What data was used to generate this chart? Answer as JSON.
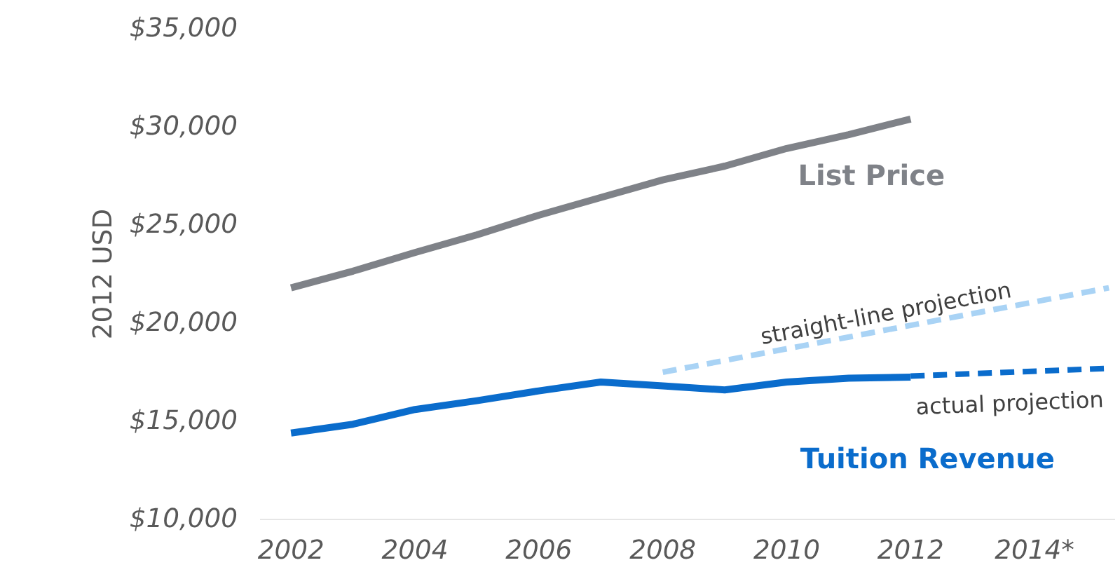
{
  "chart_data": {
    "type": "line",
    "ylabel": "2012 USD",
    "xlim": [
      2001.5,
      2015.3
    ],
    "ylim": [
      10000,
      35000
    ],
    "xticks": [
      2002,
      2004,
      2006,
      2008,
      2010,
      2012,
      {
        "value": 2014,
        "label": "2014*"
      }
    ],
    "yticks": [
      {
        "value": 10000,
        "label": "$10,000"
      },
      {
        "value": 15000,
        "label": "$15,000"
      },
      {
        "value": 20000,
        "label": "$20,000"
      },
      {
        "value": 25000,
        "label": "$25,000"
      },
      {
        "value": 30000,
        "label": "$30,000"
      },
      {
        "value": 35000,
        "label": "$35,000"
      }
    ],
    "grid": false,
    "marker": "none",
    "series": [
      {
        "name": "List Price",
        "color": "#7f8288",
        "line_style": "solid",
        "x": [
          2002,
          2003,
          2004,
          2005,
          2006,
          2007,
          2008,
          2009,
          2010,
          2011,
          2012
        ],
        "values": [
          21800,
          22650,
          23600,
          24500,
          25500,
          26400,
          27300,
          28000,
          28900,
          29600,
          30400
        ]
      },
      {
        "name": "Tuition Revenue",
        "color": "#0a6ccc",
        "line_style": "solid",
        "x": [
          2002,
          2003,
          2004,
          2005,
          2006,
          2007,
          2008,
          2009,
          2010,
          2011,
          2012
        ],
        "values": [
          14400,
          14850,
          15600,
          16050,
          16550,
          17000,
          16800,
          16600,
          17000,
          17200,
          17250
        ]
      },
      {
        "name": "straight-line projection",
        "color": "#a9d3f5",
        "line_style": "dashed",
        "x": [
          2008,
          2015.2
        ],
        "values": [
          17500,
          21800
        ]
      },
      {
        "name": "actual projection",
        "color": "#0a6ccc",
        "line_style": "dashed",
        "x": [
          2012,
          2015.2
        ],
        "values": [
          17300,
          17700
        ]
      }
    ]
  }
}
